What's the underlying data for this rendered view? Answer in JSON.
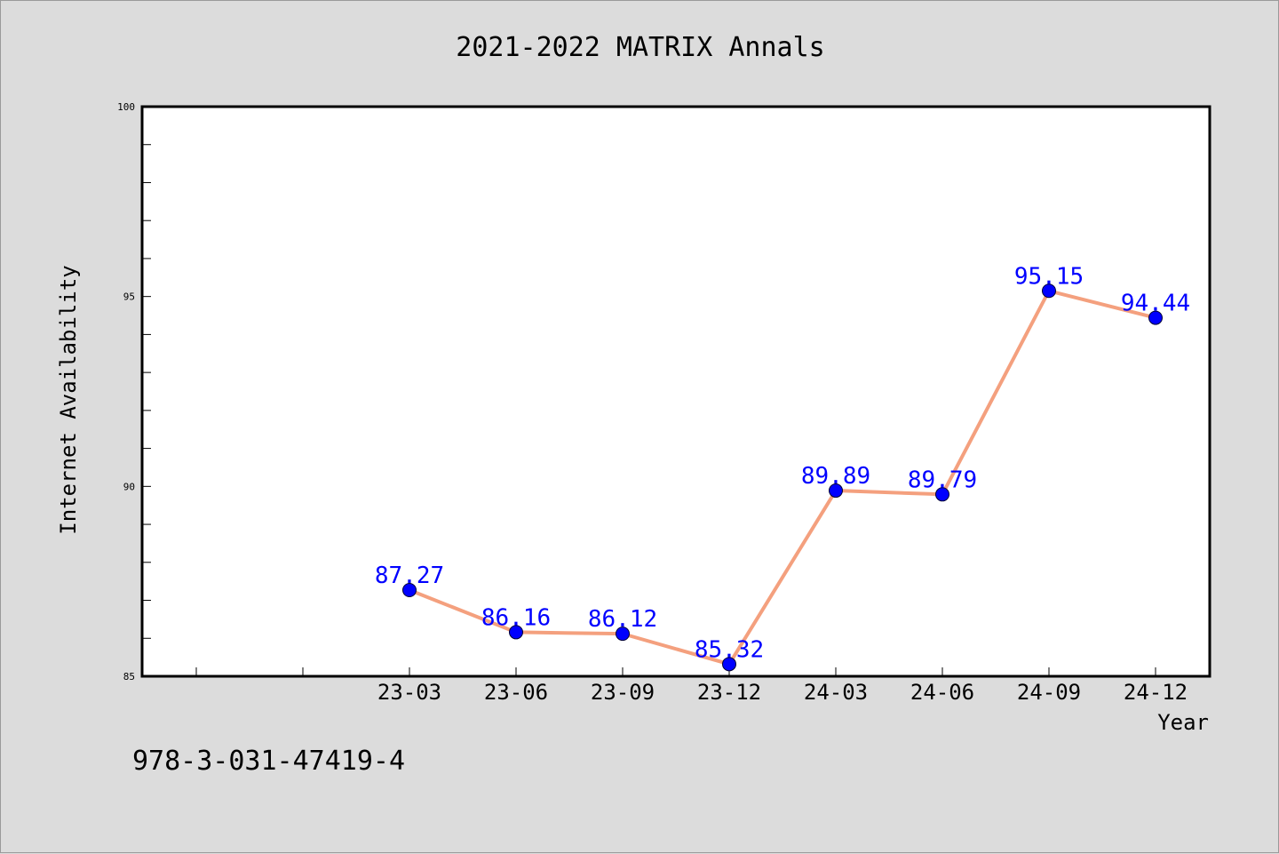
{
  "footer_text": "978-3-031-47419-4",
  "colors": {
    "background": "#dcdcdc",
    "plot_background": "#ffffff",
    "line": "#f4a07e",
    "marker": "#0000ff",
    "data_label": "#0000ff",
    "axis": "#000000"
  },
  "chart_data": {
    "type": "line",
    "title": "2021-2022 MATRIX Annals",
    "xlabel": "Year",
    "ylabel": "Internet Availability",
    "categories": [
      "23-03",
      "23-06",
      "23-09",
      "23-12",
      "24-03",
      "24-06",
      "24-09",
      "24-12"
    ],
    "series": [
      {
        "values": [
          87.27,
          86.16,
          86.12,
          85.32,
          89.89,
          89.79,
          95.15,
          94.44
        ],
        "labels": [
          "87.27",
          "86.16",
          "86.12",
          "85.32",
          "89.89",
          "89.79",
          "95.15",
          "94.44"
        ]
      }
    ],
    "ylim": [
      85,
      100
    ],
    "y_ticks": [
      "85",
      "90",
      "95",
      "100"
    ],
    "grid": false,
    "legend": "none"
  }
}
